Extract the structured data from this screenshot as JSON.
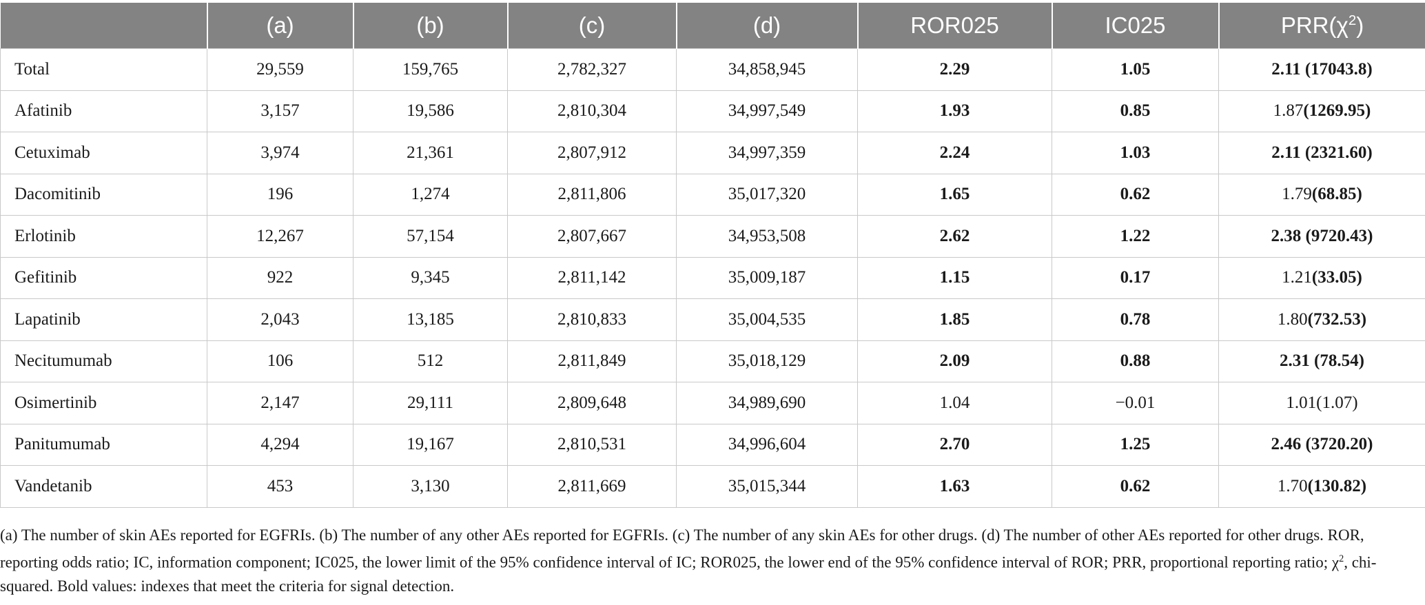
{
  "headers": [
    "",
    "(a)",
    "(b)",
    "(c)",
    "(d)",
    "ROR025",
    "IC025",
    "PRR(χ",
    "2",
    ")"
  ],
  "rows": [
    {
      "drug": "Total",
      "a": "29,559",
      "b": "159,765",
      "c": "2,782,327",
      "d": "34,858,945",
      "ror025": "2.29",
      "ic025": "1.05",
      "prr": "2.11",
      "chi": " (17043.8)"
    },
    {
      "drug": "Afatinib",
      "a": "3,157",
      "b": "19,586",
      "c": "2,810,304",
      "d": "34,997,549",
      "ror025": "1.93",
      "ic025": "0.85",
      "prr": "1.87",
      "chi": "(1269.95)"
    },
    {
      "drug": "Cetuximab",
      "a": "3,974",
      "b": "21,361",
      "c": "2,807,912",
      "d": "34,997,359",
      "ror025": "2.24",
      "ic025": "1.03",
      "prr": "2.11",
      "chi": " (2321.60)"
    },
    {
      "drug": "Dacomitinib",
      "a": "196",
      "b": "1,274",
      "c": "2,811,806",
      "d": "35,017,320",
      "ror025": "1.65",
      "ic025": "0.62",
      "prr": "1.79",
      "chi": "(68.85)"
    },
    {
      "drug": "Erlotinib",
      "a": "12,267",
      "b": "57,154",
      "c": "2,807,667",
      "d": "34,953,508",
      "ror025": "2.62",
      "ic025": "1.22",
      "prr": "2.38",
      "chi": " (9720.43)"
    },
    {
      "drug": "Gefitinib",
      "a": "922",
      "b": "9,345",
      "c": "2,811,142",
      "d": "35,009,187",
      "ror025": "1.15",
      "ic025": "0.17",
      "prr": "1.21",
      "chi": "(33.05)"
    },
    {
      "drug": "Lapatinib",
      "a": "2,043",
      "b": "13,185",
      "c": "2,810,833",
      "d": "35,004,535",
      "ror025": "1.85",
      "ic025": "0.78",
      "prr": "1.80",
      "chi": "(732.53)"
    },
    {
      "drug": "Necitumumab",
      "a": "106",
      "b": "512",
      "c": "2,811,849",
      "d": "35,018,129",
      "ror025": "2.09",
      "ic025": "0.88",
      "prr": "2.31",
      "chi": " (78.54)"
    },
    {
      "drug": "Osimertinib",
      "a": "2,147",
      "b": "29,111",
      "c": "2,809,648",
      "d": "34,989,690",
      "ror025": "1.04",
      "ic025": "−0.01",
      "prr": "1.01",
      "chi": "(1.07)"
    },
    {
      "drug": "Panitumumab",
      "a": "4,294",
      "b": "19,167",
      "c": "2,810,531",
      "d": "34,996,604",
      "ror025": "2.70",
      "ic025": "1.25",
      "prr": "2.46",
      "chi": " (3720.20)"
    },
    {
      "drug": "Vandetanib",
      "a": "453",
      "b": "3,130",
      "c": "2,811,669",
      "d": "35,015,344",
      "ror025": "1.63",
      "ic025": "0.62",
      "prr": "1.70",
      "chi": "(130.82)"
    }
  ],
  "footnote": {
    "before_sup": "(a) The number of skin AEs reported for EGFRIs. (b) The number of any other AEs reported for EGFRIs. (c) The number of any skin AEs for other drugs. (d) The number of other AEs reported for other drugs. ROR, reporting odds ratio; IC, information component; IC025, the lower limit of the 95% confidence interval of IC; ROR025, the lower end of the 95% confidence interval of ROR; PRR, proportional reporting ratio; χ",
    "sup": "2",
    "after_sup": ", chi-squared. Bold values: indexes that meet the criteria for signal detection."
  }
}
